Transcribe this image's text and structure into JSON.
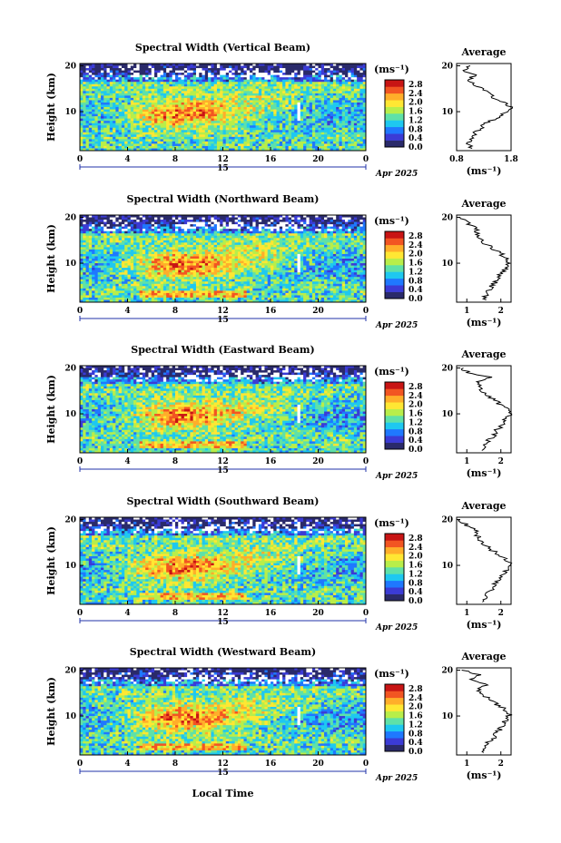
{
  "chart_data": {
    "type": "heatmap",
    "x_axis_label": "Local Time",
    "y_axis_label": "Height (km)",
    "x_ticks": [
      "0",
      "4",
      "8",
      "12",
      "16",
      "20",
      "0"
    ],
    "x_range": [
      0,
      24
    ],
    "y_ticks": [
      "20",
      "10"
    ],
    "y_range": [
      1.5,
      20.5
    ],
    "date_day_label": "15",
    "date_month_label": "Apr 2025",
    "colorbar": {
      "unit": "(ms⁻¹)",
      "ticks": [
        "2.8",
        "2.4",
        "2.0",
        "1.6",
        "1.2",
        "0.8",
        "0.4",
        "0.0"
      ],
      "range": [
        0.0,
        3.0
      ],
      "colors": [
        "#2a2a6a",
        "#3b3bd6",
        "#1f78ff",
        "#1ec8f0",
        "#5fe1a8",
        "#b8ee4a",
        "#ffe733",
        "#ffae2a",
        "#f25522",
        "#c81414"
      ]
    },
    "panels": [
      {
        "title": "Spectral Width (Vertical Beam)",
        "profile_title": "Average",
        "profile_unit": "(ms⁻¹)",
        "profile_x_ticks": [
          "0.8",
          "1.8"
        ],
        "profile_x_range": [
          0.8,
          1.8
        ],
        "profile": {
          "height": [
            2,
            3,
            4,
            5,
            6,
            7,
            8,
            9,
            10,
            11,
            12,
            13,
            14,
            15,
            16,
            17,
            18,
            19,
            20
          ],
          "value": [
            1.05,
            1.02,
            1.05,
            1.12,
            1.2,
            1.3,
            1.42,
            1.58,
            1.72,
            1.78,
            1.65,
            1.5,
            1.4,
            1.25,
            1.1,
            1.0,
            1.15,
            0.9,
            1.05
          ]
        }
      },
      {
        "title": "Spectral Width (Northward Beam)",
        "profile_title": "Average",
        "profile_unit": "(ms⁻¹)",
        "profile_x_ticks": [
          "1",
          "2"
        ],
        "profile_x_range": [
          0.7,
          2.3
        ],
        "profile": {
          "height": [
            2,
            3,
            4,
            5,
            6,
            7,
            8,
            9,
            10,
            11,
            12,
            13,
            14,
            15,
            16,
            17,
            18,
            19,
            20
          ],
          "value": [
            1.5,
            1.55,
            1.6,
            1.75,
            1.85,
            1.95,
            2.05,
            2.15,
            2.25,
            2.2,
            2.0,
            1.8,
            1.6,
            1.45,
            1.35,
            1.3,
            1.2,
            0.95,
            0.8
          ]
        }
      },
      {
        "title": "Spectral Width (Eastward Beam)",
        "profile_title": "Average",
        "profile_unit": "(ms⁻¹)",
        "profile_x_ticks": [
          "1",
          "2"
        ],
        "profile_x_range": [
          0.7,
          2.3
        ],
        "profile": {
          "height": [
            2,
            3,
            4,
            5,
            6,
            7,
            8,
            9,
            10,
            11,
            12,
            13,
            14,
            15,
            16,
            17,
            18,
            19,
            20
          ],
          "value": [
            1.5,
            1.55,
            1.6,
            1.75,
            1.85,
            1.95,
            2.05,
            2.15,
            2.25,
            2.2,
            2.0,
            1.8,
            1.6,
            1.45,
            1.35,
            1.3,
            1.7,
            1.0,
            0.9
          ]
        }
      },
      {
        "title": "Spectral Width (Southward Beam)",
        "profile_title": "Average",
        "profile_unit": "(ms⁻¹)",
        "profile_x_ticks": [
          "1",
          "2"
        ],
        "profile_x_range": [
          0.7,
          2.3
        ],
        "profile": {
          "height": [
            2,
            3,
            4,
            5,
            6,
            7,
            8,
            9,
            10,
            11,
            12,
            13,
            14,
            15,
            16,
            17,
            18,
            19,
            20
          ],
          "value": [
            1.5,
            1.55,
            1.6,
            1.75,
            1.85,
            1.95,
            2.05,
            2.15,
            2.25,
            2.2,
            2.0,
            1.8,
            1.6,
            1.45,
            1.35,
            1.3,
            1.2,
            0.95,
            0.8
          ]
        }
      },
      {
        "title": "Spectral Width (Westward Beam)",
        "profile_title": "Average",
        "profile_unit": "(ms⁻¹)",
        "profile_x_ticks": [
          "1",
          "2"
        ],
        "profile_x_range": [
          0.7,
          2.3
        ],
        "profile": {
          "height": [
            2,
            3,
            4,
            5,
            6,
            7,
            8,
            9,
            10,
            11,
            12,
            13,
            14,
            15,
            16,
            17,
            18,
            19,
            20
          ],
          "value": [
            1.5,
            1.55,
            1.6,
            1.75,
            1.85,
            1.95,
            2.05,
            2.15,
            2.25,
            2.2,
            2.0,
            1.8,
            1.6,
            1.45,
            1.35,
            1.6,
            1.1,
            1.4,
            0.85
          ]
        }
      }
    ]
  }
}
